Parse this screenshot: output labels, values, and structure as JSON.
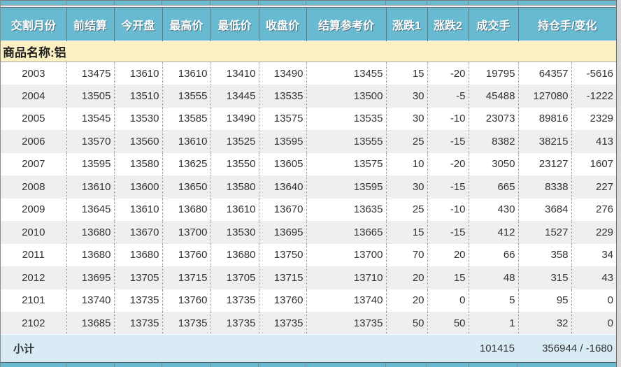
{
  "header": {
    "columns": [
      "交割月份",
      "前结算",
      "今开盘",
      "最高价",
      "最低价",
      "收盘价",
      "结算参考价",
      "涨跌1",
      "涨跌2",
      "成交手",
      "持仓手/变化"
    ]
  },
  "section": {
    "label": "商品名称:铝"
  },
  "rows": [
    {
      "month": "2003",
      "prev_settle": "13475",
      "open": "13610",
      "high": "13610",
      "low": "13410",
      "close": "13490",
      "settle_ref": "13455",
      "chg1": "15",
      "chg2": "-20",
      "volume": "19795",
      "open_interest": "64357",
      "oi_change": "-5616"
    },
    {
      "month": "2004",
      "prev_settle": "13505",
      "open": "13510",
      "high": "13555",
      "low": "13445",
      "close": "13535",
      "settle_ref": "13500",
      "chg1": "30",
      "chg2": "-5",
      "volume": "45488",
      "open_interest": "127080",
      "oi_change": "-1222"
    },
    {
      "month": "2005",
      "prev_settle": "13545",
      "open": "13530",
      "high": "13585",
      "low": "13490",
      "close": "13575",
      "settle_ref": "13535",
      "chg1": "30",
      "chg2": "-10",
      "volume": "23073",
      "open_interest": "89816",
      "oi_change": "2329"
    },
    {
      "month": "2006",
      "prev_settle": "13570",
      "open": "13560",
      "high": "13610",
      "low": "13525",
      "close": "13595",
      "settle_ref": "13555",
      "chg1": "25",
      "chg2": "-15",
      "volume": "8382",
      "open_interest": "38215",
      "oi_change": "413"
    },
    {
      "month": "2007",
      "prev_settle": "13595",
      "open": "13580",
      "high": "13625",
      "low": "13550",
      "close": "13605",
      "settle_ref": "13575",
      "chg1": "10",
      "chg2": "-20",
      "volume": "3050",
      "open_interest": "23127",
      "oi_change": "1607"
    },
    {
      "month": "2008",
      "prev_settle": "13610",
      "open": "13600",
      "high": "13650",
      "low": "13580",
      "close": "13640",
      "settle_ref": "13595",
      "chg1": "30",
      "chg2": "-15",
      "volume": "665",
      "open_interest": "8338",
      "oi_change": "227"
    },
    {
      "month": "2009",
      "prev_settle": "13645",
      "open": "13610",
      "high": "13680",
      "low": "13610",
      "close": "13670",
      "settle_ref": "13635",
      "chg1": "25",
      "chg2": "-10",
      "volume": "430",
      "open_interest": "3684",
      "oi_change": "276"
    },
    {
      "month": "2010",
      "prev_settle": "13680",
      "open": "13670",
      "high": "13700",
      "low": "13530",
      "close": "13695",
      "settle_ref": "13665",
      "chg1": "15",
      "chg2": "-15",
      "volume": "412",
      "open_interest": "1527",
      "oi_change": "229"
    },
    {
      "month": "2011",
      "prev_settle": "13680",
      "open": "13680",
      "high": "13760",
      "low": "13680",
      "close": "13750",
      "settle_ref": "13700",
      "chg1": "70",
      "chg2": "20",
      "volume": "66",
      "open_interest": "358",
      "oi_change": "34"
    },
    {
      "month": "2012",
      "prev_settle": "13695",
      "open": "13705",
      "high": "13715",
      "low": "13705",
      "close": "13715",
      "settle_ref": "13710",
      "chg1": "20",
      "chg2": "15",
      "volume": "48",
      "open_interest": "315",
      "oi_change": "43"
    },
    {
      "month": "2101",
      "prev_settle": "13740",
      "open": "13735",
      "high": "13760",
      "low": "13735",
      "close": "13760",
      "settle_ref": "13740",
      "chg1": "20",
      "chg2": "0",
      "volume": "5",
      "open_interest": "95",
      "oi_change": "0"
    },
    {
      "month": "2102",
      "prev_settle": "13685",
      "open": "13735",
      "high": "13735",
      "low": "13735",
      "close": "13735",
      "settle_ref": "13735",
      "chg1": "50",
      "chg2": "50",
      "volume": "1",
      "open_interest": "32",
      "oi_change": "0"
    }
  ],
  "subtotal": {
    "label": "小计",
    "volume": "101415",
    "open_interest_and_change": "356944 / -1680"
  },
  "colors": {
    "header_bg": "#67bad0",
    "section_bg": "#faf0c2",
    "subtotal_bg": "#d9ecf5",
    "row_alt_bg": "#efefef",
    "text_color": "#333333"
  }
}
